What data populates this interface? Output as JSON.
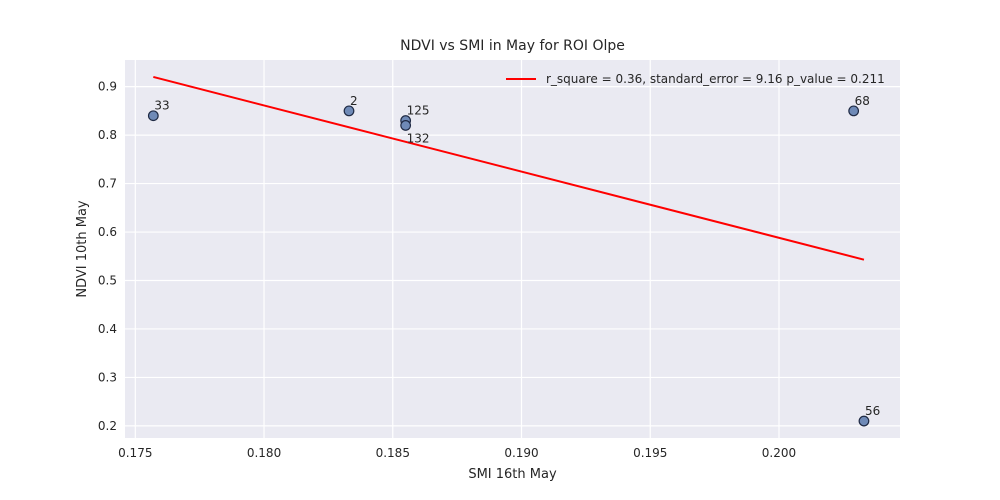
{
  "chart_data": {
    "type": "scatter",
    "title": "NDVI vs SMI in May for ROI Olpe",
    "xlabel": "SMI 16th May",
    "ylabel": "NDVI 10th May",
    "xlim": [
      0.1746,
      0.2047
    ],
    "ylim": [
      0.175,
      0.955
    ],
    "xticks": [
      0.175,
      0.18,
      0.185,
      0.19,
      0.195,
      0.2
    ],
    "xtick_labels": [
      "0.175",
      "0.180",
      "0.185",
      "0.190",
      "0.195",
      "0.200"
    ],
    "yticks": [
      0.2,
      0.3,
      0.4,
      0.5,
      0.6,
      0.7,
      0.8,
      0.9
    ],
    "ytick_labels": [
      "0.2",
      "0.3",
      "0.4",
      "0.5",
      "0.6",
      "0.7",
      "0.8",
      "0.9"
    ],
    "grid": true,
    "legend_position": "top-right",
    "points": [
      {
        "label": "33",
        "x": 0.1757,
        "y": 0.84
      },
      {
        "label": "2",
        "x": 0.1833,
        "y": 0.85
      },
      {
        "label": "125",
        "x": 0.1855,
        "y": 0.83
      },
      {
        "label": "132",
        "x": 0.1855,
        "y": 0.82
      },
      {
        "label": "68",
        "x": 0.2029,
        "y": 0.85
      },
      {
        "label": "56",
        "x": 0.2033,
        "y": 0.21
      }
    ],
    "regression_line": {
      "name": "r_square = 0.36, standard_error = 9.16 p_value = 0.211",
      "x": [
        0.1757,
        0.2033
      ],
      "y": [
        0.92,
        0.543
      ]
    },
    "colors": {
      "background": "#eaeaf2",
      "grid": "#ffffff",
      "point_fill": "#6f8ab7",
      "point_stroke": "#1f2a44",
      "line": "#ff0000"
    }
  }
}
